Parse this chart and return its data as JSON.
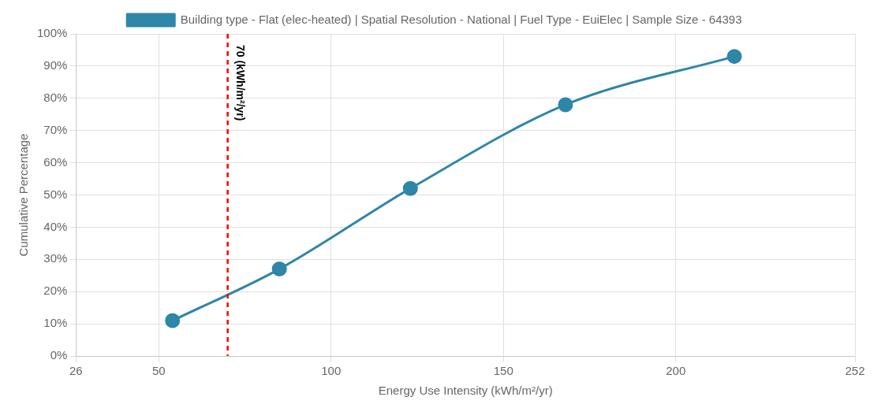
{
  "chart_data": {
    "type": "line",
    "xlabel": "Energy Use Intensity (kWh/m²/yr)",
    "ylabel": "Cumulative Percentage",
    "series": [
      {
        "name": "Building type - Flat (elec-heated) | Spatial Resolution - National | Fuel Type - EuiElec | Sample Size - 64393",
        "color": "#2e86a8",
        "x": [
          54,
          85,
          123,
          168,
          217
        ],
        "values": [
          11,
          27,
          52,
          78,
          93
        ]
      }
    ],
    "xlim": [
      26,
      252
    ],
    "xticks": [
      26,
      50,
      100,
      150,
      200,
      252
    ],
    "ylim": [
      0,
      100
    ],
    "yticks": [
      {
        "value": 0,
        "label": "0%"
      },
      {
        "value": 10,
        "label": "10%"
      },
      {
        "value": 20,
        "label": "20%"
      },
      {
        "value": 30,
        "label": "30%"
      },
      {
        "value": 40,
        "label": "40%"
      },
      {
        "value": 50,
        "label": "50%"
      },
      {
        "value": 60,
        "label": "60%"
      },
      {
        "value": 70,
        "label": "70%"
      },
      {
        "value": 80,
        "label": "80%"
      },
      {
        "value": 90,
        "label": "90%"
      },
      {
        "value": 100,
        "label": "100%"
      }
    ],
    "ref_lines": [
      {
        "axis": "x",
        "value": 70,
        "label": "70 (kWh/m²/yr)",
        "color": "#ff0000",
        "line_style": "dashed"
      }
    ],
    "grid": true,
    "legend": "top",
    "marker": "circle",
    "line_style": "solid"
  }
}
